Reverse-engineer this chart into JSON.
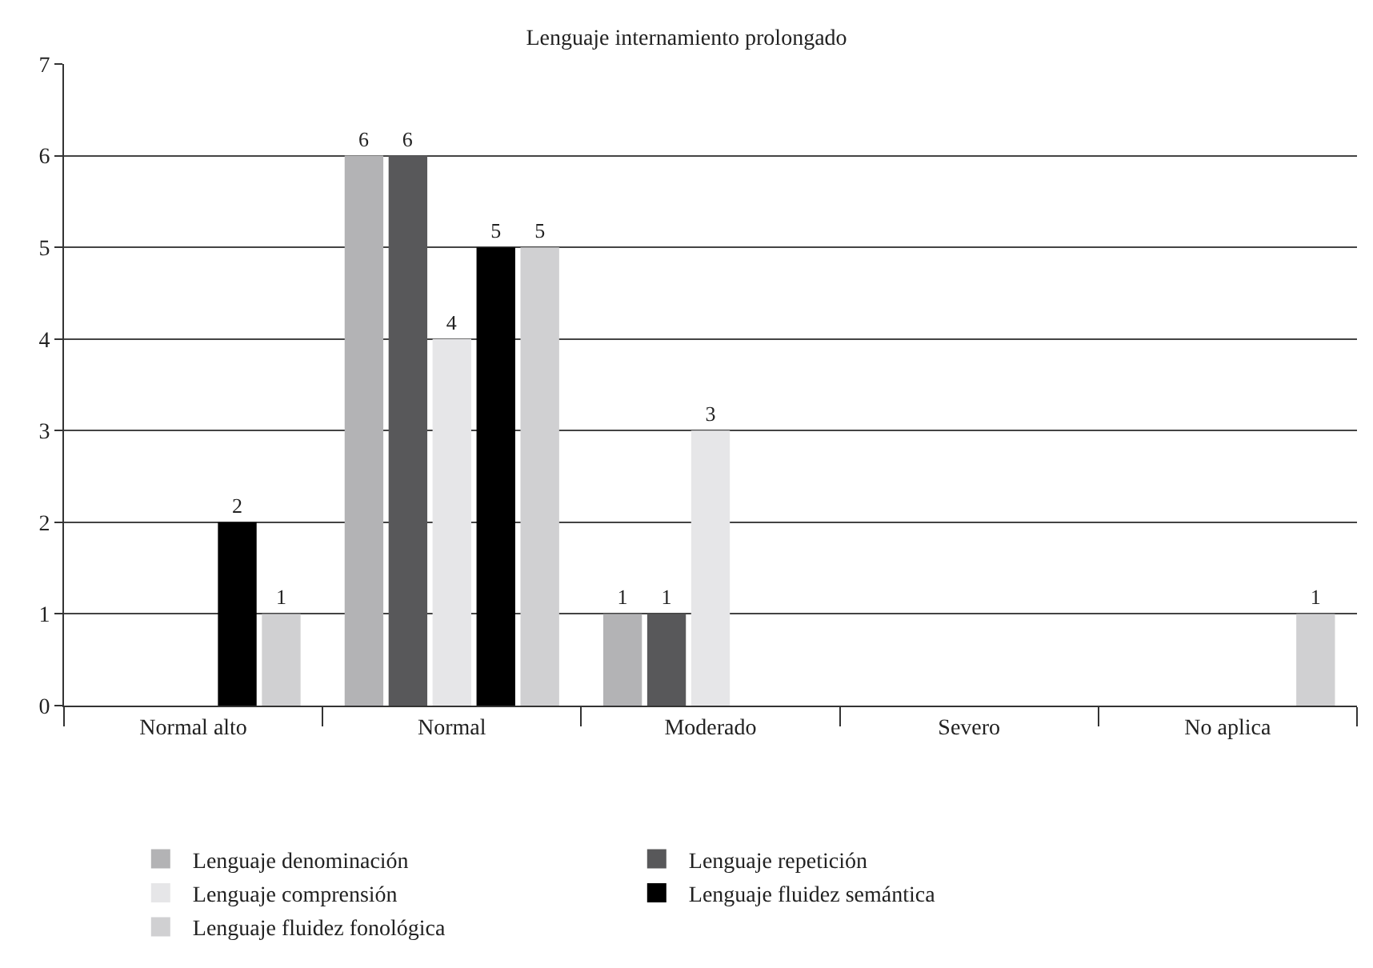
{
  "chart_data": {
    "type": "bar",
    "title": "Lenguaje internamiento prolongado",
    "categories": [
      "Normal alto",
      "Normal",
      "Moderado",
      "Severo",
      "No aplica"
    ],
    "series": [
      {
        "name": "Lenguaje denominación",
        "color": "#b3b3b5",
        "values": [
          null,
          6,
          1,
          null,
          null
        ]
      },
      {
        "name": "Lenguaje repetición",
        "color": "#58585a",
        "values": [
          null,
          6,
          1,
          null,
          null
        ]
      },
      {
        "name": "Lenguaje comprensión",
        "color": "#e6e6e8",
        "values": [
          null,
          4,
          3,
          null,
          null
        ]
      },
      {
        "name": "Lenguaje fluidez semántica",
        "color": "#000000",
        "values": [
          2,
          5,
          null,
          null,
          null
        ]
      },
      {
        "name": "Lenguaje fluidez fonológica",
        "color": "#d0d0d2",
        "values": [
          1,
          5,
          null,
          null,
          1
        ]
      }
    ],
    "ylim": [
      0,
      7
    ],
    "yticks": [
      0,
      1,
      2,
      3,
      4,
      5,
      6,
      7
    ],
    "grid": "y",
    "legend": "bottom",
    "data_labels": true
  }
}
